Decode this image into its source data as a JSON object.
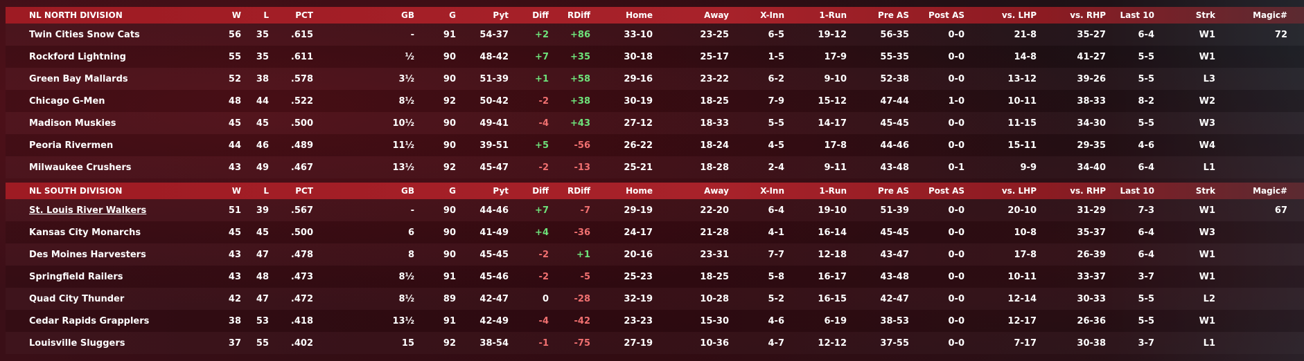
{
  "columns": [
    "W",
    "L",
    "PCT",
    "GB",
    "G",
    "Pyt",
    "Diff",
    "RDiff",
    "Home",
    "Away",
    "X-Inn",
    "1-Run",
    "Pre AS",
    "Post AS",
    "vs. LHP",
    "vs. RHP",
    "Last 10",
    "Strk",
    "Magic#"
  ],
  "divisions": [
    {
      "title": "NL NORTH DIVISION",
      "magic_header": "Magic#",
      "teams": [
        {
          "name": "Twin Cities Snow Cats",
          "w": "56",
          "l": "35",
          "pct": ".615",
          "gb": "-",
          "g": "91",
          "pyt": "54-37",
          "diff": "+2",
          "rdiff": "+86",
          "home": "33-10",
          "away": "23-25",
          "xinn": "6-5",
          "onerun": "19-12",
          "preas": "56-35",
          "postas": "0-0",
          "lhp": "21-8",
          "rhp": "35-27",
          "last10": "6-4",
          "strk": "W1",
          "magic": "72"
        },
        {
          "name": "Rockford Lightning",
          "w": "55",
          "l": "35",
          "pct": ".611",
          "gb": "½",
          "g": "90",
          "pyt": "48-42",
          "diff": "+7",
          "rdiff": "+35",
          "home": "30-18",
          "away": "25-17",
          "xinn": "1-5",
          "onerun": "17-9",
          "preas": "55-35",
          "postas": "0-0",
          "lhp": "14-8",
          "rhp": "41-27",
          "last10": "5-5",
          "strk": "W1",
          "magic": ""
        },
        {
          "name": "Green Bay  Mallards",
          "w": "52",
          "l": "38",
          "pct": ".578",
          "gb": "3½",
          "g": "90",
          "pyt": "51-39",
          "diff": "+1",
          "rdiff": "+58",
          "home": "29-16",
          "away": "23-22",
          "xinn": "6-2",
          "onerun": "9-10",
          "preas": "52-38",
          "postas": "0-0",
          "lhp": "13-12",
          "rhp": "39-26",
          "last10": "5-5",
          "strk": "L3",
          "magic": ""
        },
        {
          "name": "Chicago G-Men",
          "w": "48",
          "l": "44",
          "pct": ".522",
          "gb": "8½",
          "g": "92",
          "pyt": "50-42",
          "diff": "-2",
          "rdiff": "+38",
          "home": "30-19",
          "away": "18-25",
          "xinn": "7-9",
          "onerun": "15-12",
          "preas": "47-44",
          "postas": "1-0",
          "lhp": "10-11",
          "rhp": "38-33",
          "last10": "8-2",
          "strk": "W2",
          "magic": ""
        },
        {
          "name": "Madison Muskies",
          "w": "45",
          "l": "45",
          "pct": ".500",
          "gb": "10½",
          "g": "90",
          "pyt": "49-41",
          "diff": "-4",
          "rdiff": "+43",
          "home": "27-12",
          "away": "18-33",
          "xinn": "5-5",
          "onerun": "14-17",
          "preas": "45-45",
          "postas": "0-0",
          "lhp": "11-15",
          "rhp": "34-30",
          "last10": "5-5",
          "strk": "W3",
          "magic": ""
        },
        {
          "name": "Peoria Rivermen",
          "w": "44",
          "l": "46",
          "pct": ".489",
          "gb": "11½",
          "g": "90",
          "pyt": "39-51",
          "diff": "+5",
          "rdiff": "-56",
          "home": "26-22",
          "away": "18-24",
          "xinn": "4-5",
          "onerun": "17-8",
          "preas": "44-46",
          "postas": "0-0",
          "lhp": "15-11",
          "rhp": "29-35",
          "last10": "4-6",
          "strk": "W4",
          "magic": ""
        },
        {
          "name": "Milwaukee Crushers",
          "w": "43",
          "l": "49",
          "pct": ".467",
          "gb": "13½",
          "g": "92",
          "pyt": "45-47",
          "diff": "-2",
          "rdiff": "-13",
          "home": "25-21",
          "away": "18-28",
          "xinn": "2-4",
          "onerun": "9-11",
          "preas": "43-48",
          "postas": "0-1",
          "lhp": "9-9",
          "rhp": "34-40",
          "last10": "6-4",
          "strk": "L1",
          "magic": ""
        }
      ]
    },
    {
      "title": "NL SOUTH DIVISION",
      "magic_header": "Magic#",
      "teams": [
        {
          "name": "St. Louis River Walkers",
          "w": "51",
          "l": "39",
          "pct": ".567",
          "gb": "-",
          "g": "90",
          "pyt": "44-46",
          "diff": "+7",
          "rdiff": "-7",
          "home": "29-19",
          "away": "22-20",
          "xinn": "6-4",
          "onerun": "19-10",
          "preas": "51-39",
          "postas": "0-0",
          "lhp": "20-10",
          "rhp": "31-29",
          "last10": "7-3",
          "strk": "W1",
          "magic": "67"
        },
        {
          "name": "Kansas City Monarchs",
          "w": "45",
          "l": "45",
          "pct": ".500",
          "gb": "6",
          "g": "90",
          "pyt": "41-49",
          "diff": "+4",
          "rdiff": "-36",
          "home": "24-17",
          "away": "21-28",
          "xinn": "4-1",
          "onerun": "16-14",
          "preas": "45-45",
          "postas": "0-0",
          "lhp": "10-8",
          "rhp": "35-37",
          "last10": "6-4",
          "strk": "W3",
          "magic": ""
        },
        {
          "name": "Des Moines Harvesters",
          "w": "43",
          "l": "47",
          "pct": ".478",
          "gb": "8",
          "g": "90",
          "pyt": "45-45",
          "diff": "-2",
          "rdiff": "+1",
          "home": "20-16",
          "away": "23-31",
          "xinn": "7-7",
          "onerun": "12-18",
          "preas": "43-47",
          "postas": "0-0",
          "lhp": "17-8",
          "rhp": "26-39",
          "last10": "6-4",
          "strk": "W1",
          "magic": ""
        },
        {
          "name": "Springfield Railers",
          "w": "43",
          "l": "48",
          "pct": ".473",
          "gb": "8½",
          "g": "91",
          "pyt": "45-46",
          "diff": "-2",
          "rdiff": "-5",
          "home": "25-23",
          "away": "18-25",
          "xinn": "5-8",
          "onerun": "16-17",
          "preas": "43-48",
          "postas": "0-0",
          "lhp": "10-11",
          "rhp": "33-37",
          "last10": "3-7",
          "strk": "W1",
          "magic": ""
        },
        {
          "name": "Quad City Thunder",
          "w": "42",
          "l": "47",
          "pct": ".472",
          "gb": "8½",
          "g": "89",
          "pyt": "42-47",
          "diff": "0",
          "rdiff": "-28",
          "home": "32-19",
          "away": "10-28",
          "xinn": "5-2",
          "onerun": "16-15",
          "preas": "42-47",
          "postas": "0-0",
          "lhp": "12-14",
          "rhp": "30-33",
          "last10": "5-5",
          "strk": "L2",
          "magic": ""
        },
        {
          "name": "Cedar Rapids Grapplers",
          "w": "38",
          "l": "53",
          "pct": ".418",
          "gb": "13½",
          "g": "91",
          "pyt": "42-49",
          "diff": "-4",
          "rdiff": "-42",
          "home": "23-23",
          "away": "15-30",
          "xinn": "4-6",
          "onerun": "6-19",
          "preas": "38-53",
          "postas": "0-0",
          "lhp": "12-17",
          "rhp": "26-36",
          "last10": "5-5",
          "strk": "W1",
          "magic": ""
        },
        {
          "name": "Louisville Sluggers",
          "w": "37",
          "l": "55",
          "pct": ".402",
          "gb": "15",
          "g": "92",
          "pyt": "38-54",
          "diff": "-1",
          "rdiff": "-75",
          "home": "27-19",
          "away": "10-36",
          "xinn": "4-7",
          "onerun": "12-12",
          "preas": "37-55",
          "postas": "0-0",
          "lhp": "7-17",
          "rhp": "30-38",
          "last10": "3-7",
          "strk": "L1",
          "magic": ""
        }
      ]
    }
  ],
  "colors": {
    "header_bg": "#a8222a",
    "positive": "#6ee27a",
    "negative": "#f07070"
  }
}
